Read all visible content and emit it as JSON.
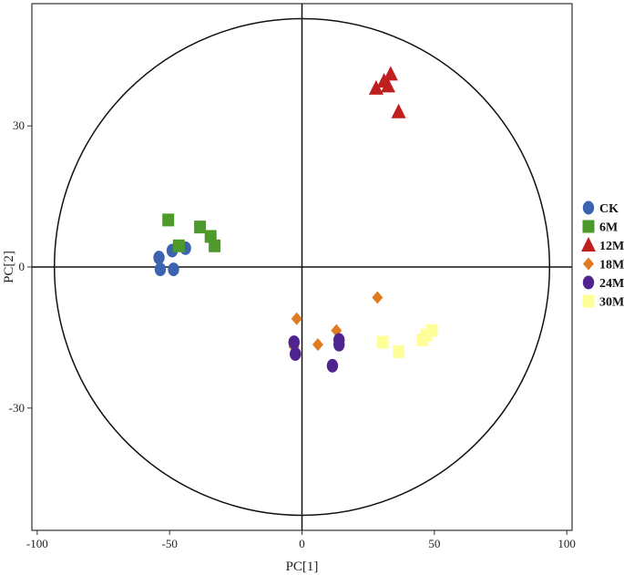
{
  "chart_data": {
    "type": "scatter",
    "xlabel": "PC[1]",
    "ylabel": "PC[2]",
    "xlim": [
      -102,
      102
    ],
    "ylim": [
      -56,
      56
    ],
    "xticks": [
      -100,
      -50,
      0,
      50,
      100
    ],
    "yticks": [
      -30,
      0,
      30
    ],
    "xtick_labels": [
      "-100",
      "-50",
      "0",
      "50",
      "100"
    ],
    "ytick_labels": [
      "-30",
      "0",
      "30"
    ],
    "ellipse": {
      "cx": 0,
      "cy": 0,
      "rx": 93.5,
      "ry": 52.8
    },
    "reference_lines": {
      "x": 0,
      "y": 0
    },
    "grid": false,
    "legend_position": "right",
    "series": [
      {
        "name": "CK",
        "marker": "circle",
        "color": "#3b63b0",
        "points": [
          [
            -54,
            2
          ],
          [
            -53.5,
            -0.5
          ],
          [
            -49,
            3.5
          ],
          [
            -48.5,
            -0.5
          ],
          [
            -44,
            4
          ]
        ]
      },
      {
        "name": "6M",
        "marker": "square",
        "color": "#4d9a2a",
        "points": [
          [
            -50.5,
            10
          ],
          [
            -46.5,
            4.5
          ],
          [
            -38.5,
            8.5
          ],
          [
            -34.5,
            6.5
          ],
          [
            -33,
            4.5
          ]
        ]
      },
      {
        "name": "12M",
        "marker": "triangle",
        "color": "#c01f1f",
        "points": [
          [
            28,
            38
          ],
          [
            31,
            39.5
          ],
          [
            32.5,
            38.5
          ],
          [
            33.5,
            41
          ],
          [
            36.5,
            33
          ]
        ]
      },
      {
        "name": "18M",
        "marker": "diamond",
        "color": "#e07b22",
        "points": [
          [
            -2,
            -11
          ],
          [
            -3,
            -17
          ],
          [
            6,
            -16.5
          ],
          [
            13,
            -13.5
          ],
          [
            28.5,
            -6.5
          ]
        ]
      },
      {
        "name": "24M",
        "marker": "circle",
        "color": "#4f2490",
        "points": [
          [
            -3,
            -16
          ],
          [
            -2.5,
            -18.5
          ],
          [
            11.5,
            -21
          ],
          [
            14,
            -15.5
          ],
          [
            14,
            -16.5
          ]
        ]
      },
      {
        "name": "30M",
        "marker": "square",
        "color": "#ffff99",
        "points": [
          [
            30.5,
            -16
          ],
          [
            36.5,
            -18
          ],
          [
            45.5,
            -15.5
          ],
          [
            47,
            -14.5
          ],
          [
            49,
            -13.5
          ]
        ]
      }
    ]
  }
}
